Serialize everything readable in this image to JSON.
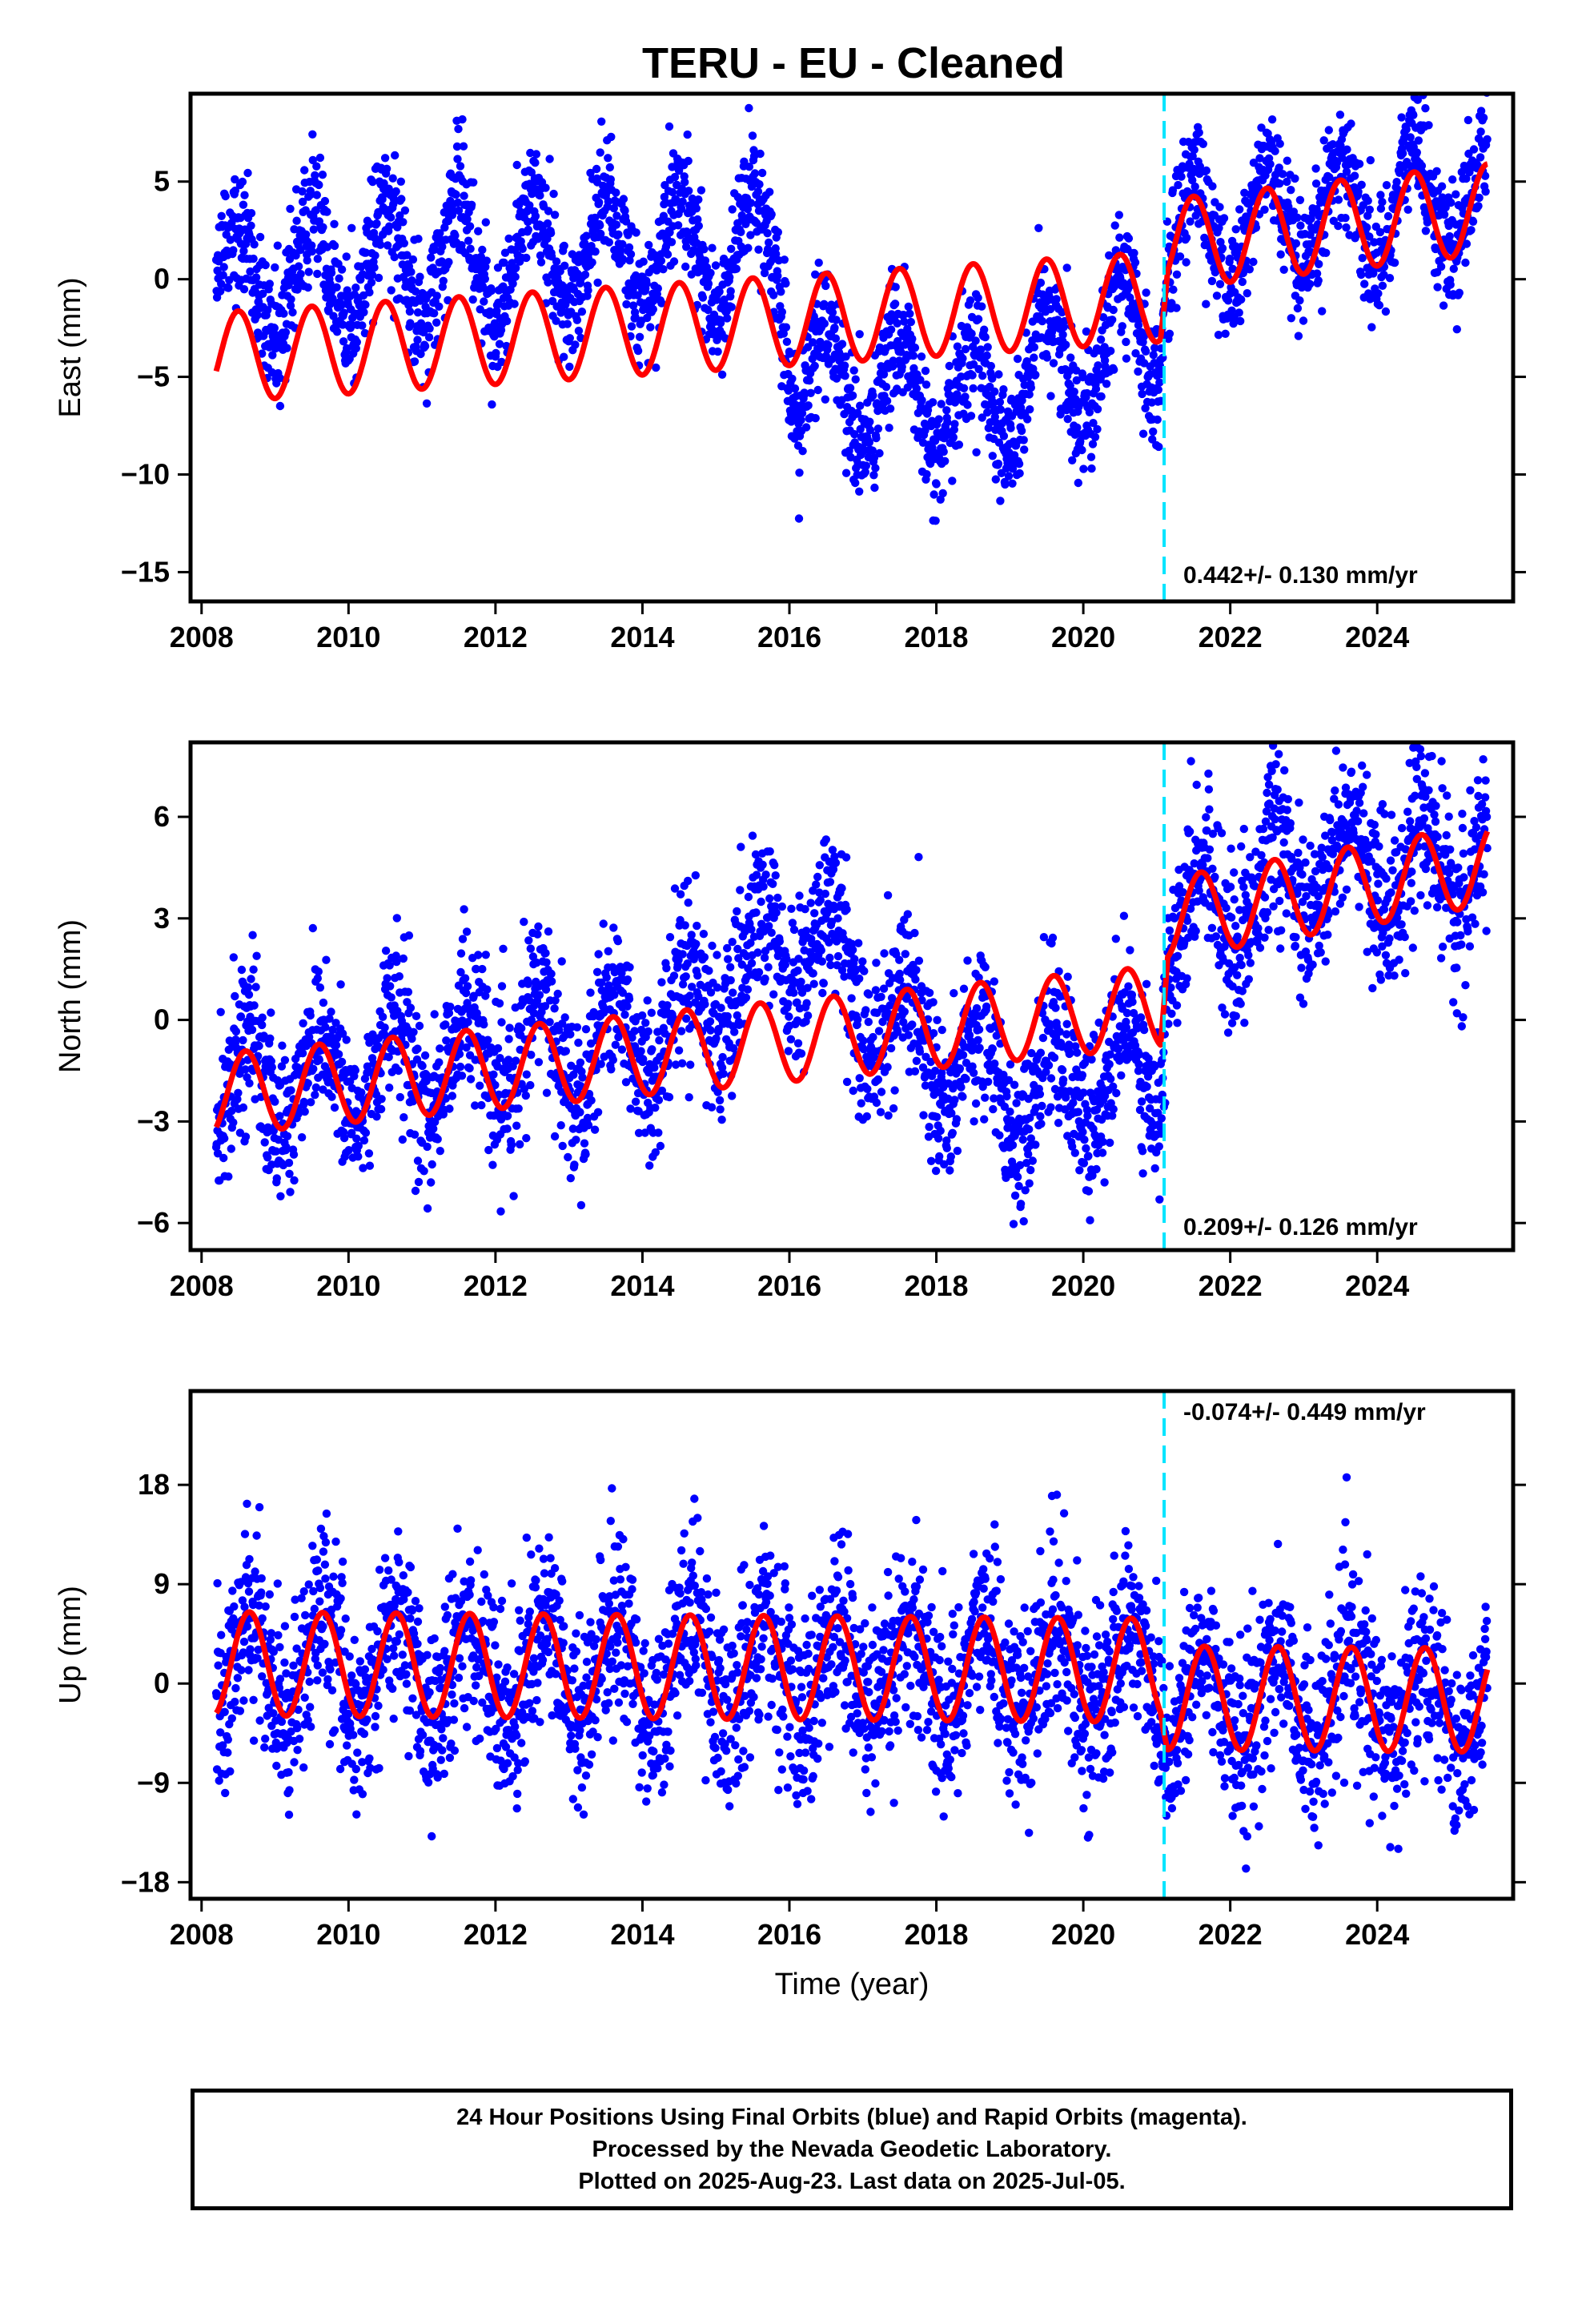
{
  "title": "TERU  - EU - Cleaned",
  "colors": {
    "data": "#0000ff",
    "model": "#ff0000",
    "break": "#00e5ff",
    "frame": "#000000"
  },
  "chart_data": [
    {
      "type": "scatter",
      "ylabel": "East (mm)",
      "xlabel": "",
      "xlim": [
        2007.85,
        2025.85
      ],
      "ylim": [
        -16.5,
        9.5
      ],
      "yticks": [
        -15,
        -10,
        -5,
        0,
        5
      ],
      "ytick_labels": [
        "−15",
        "−10",
        "−5",
        "0",
        "5"
      ],
      "xticks": [
        2008,
        2010,
        2012,
        2014,
        2016,
        2018,
        2020,
        2022,
        2024
      ],
      "xtick_labels": [
        "2008",
        "2010",
        "2012",
        "2014",
        "2016",
        "2018",
        "2020",
        "2022",
        "2024"
      ],
      "break_year": 2021.1,
      "rate_text": "0.442+/- 0.130 mm/yr",
      "data_trend": [
        [
          2008.2,
          0.0
        ],
        [
          2011.0,
          0.8
        ],
        [
          2013.5,
          1.5
        ],
        [
          2015.9,
          1.3
        ],
        [
          2016.05,
          -5.0
        ],
        [
          2018.5,
          -6.5
        ],
        [
          2021.05,
          -2.0
        ],
        [
          2021.15,
          2.0
        ],
        [
          2025.5,
          4.5
        ]
      ],
      "data_amplitude": 3.0,
      "data_noise": 1.6,
      "model_trend": [
        [
          2008.2,
          -4.0
        ],
        [
          2021.05,
          -0.9
        ],
        [
          2021.15,
          1.8
        ],
        [
          2025.5,
          3.6
        ]
      ],
      "model_amplitude": 2.3,
      "model_phase": 0.25
    },
    {
      "type": "scatter",
      "ylabel": "North (mm)",
      "xlabel": "",
      "xlim": [
        2007.85,
        2025.85
      ],
      "ylim": [
        -6.8,
        8.2
      ],
      "yticks": [
        -6,
        -3,
        0,
        3,
        6
      ],
      "ytick_labels": [
        "−6",
        "−3",
        "0",
        "3",
        "6"
      ],
      "xticks": [
        2008,
        2010,
        2012,
        2014,
        2016,
        2018,
        2020,
        2022,
        2024
      ],
      "xtick_labels": [
        "2008",
        "2010",
        "2012",
        "2014",
        "2016",
        "2018",
        "2020",
        "2022",
        "2024"
      ],
      "break_year": 2021.1,
      "rate_text": "0.209+/- 0.126 mm/yr",
      "data_trend": [
        [
          2008.2,
          -2.0
        ],
        [
          2014.0,
          -0.5
        ],
        [
          2016.3,
          2.5
        ],
        [
          2017.3,
          0.0
        ],
        [
          2019.0,
          -2.0
        ],
        [
          2021.05,
          -1.5
        ],
        [
          2021.15,
          3.0
        ],
        [
          2023.5,
          4.5
        ],
        [
          2025.5,
          4.5
        ]
      ],
      "data_amplitude": 1.5,
      "data_noise": 1.2,
      "model_trend": [
        [
          2008.2,
          -2.2
        ],
        [
          2021.05,
          0.4
        ],
        [
          2021.15,
          3.0
        ],
        [
          2025.5,
          4.6
        ]
      ],
      "model_amplitude": 1.2,
      "model_phase": 0.35
    },
    {
      "type": "scatter",
      "ylabel": "Up (mm)",
      "xlabel": "Time (year)",
      "xlim": [
        2007.85,
        2025.85
      ],
      "ylim": [
        -19.5,
        26.5
      ],
      "yticks": [
        -18,
        -9,
        0,
        9,
        18
      ],
      "ytick_labels": [
        "−18",
        "−9",
        "0",
        "9",
        "18"
      ],
      "xticks": [
        2008,
        2010,
        2012,
        2014,
        2016,
        2018,
        2020,
        2022,
        2024
      ],
      "xtick_labels": [
        "2008",
        "2010",
        "2012",
        "2014",
        "2016",
        "2018",
        "2020",
        "2022",
        "2024"
      ],
      "break_year": 2021.1,
      "rate_text": "-0.074+/- 0.449 mm/yr",
      "data_trend": [
        [
          2008.2,
          1.5
        ],
        [
          2021.05,
          1.0
        ],
        [
          2021.15,
          -1.5
        ],
        [
          2025.5,
          -1.5
        ]
      ],
      "data_amplitude": 4.5,
      "data_noise": 4.2,
      "model_trend": [
        [
          2008.2,
          1.8
        ],
        [
          2021.05,
          1.2
        ],
        [
          2021.15,
          -1.3
        ],
        [
          2025.5,
          -1.5
        ]
      ],
      "model_amplitude": 4.7,
      "model_phase": 0.4
    }
  ],
  "footer": {
    "line1": "24 Hour Positions Using Final Orbits (blue) and Rapid Orbits (magenta).",
    "line2": "Processed by the Nevada Geodetic Laboratory.",
    "line3": "Plotted on 2025-Aug-23. Last data on 2025-Jul-05."
  }
}
